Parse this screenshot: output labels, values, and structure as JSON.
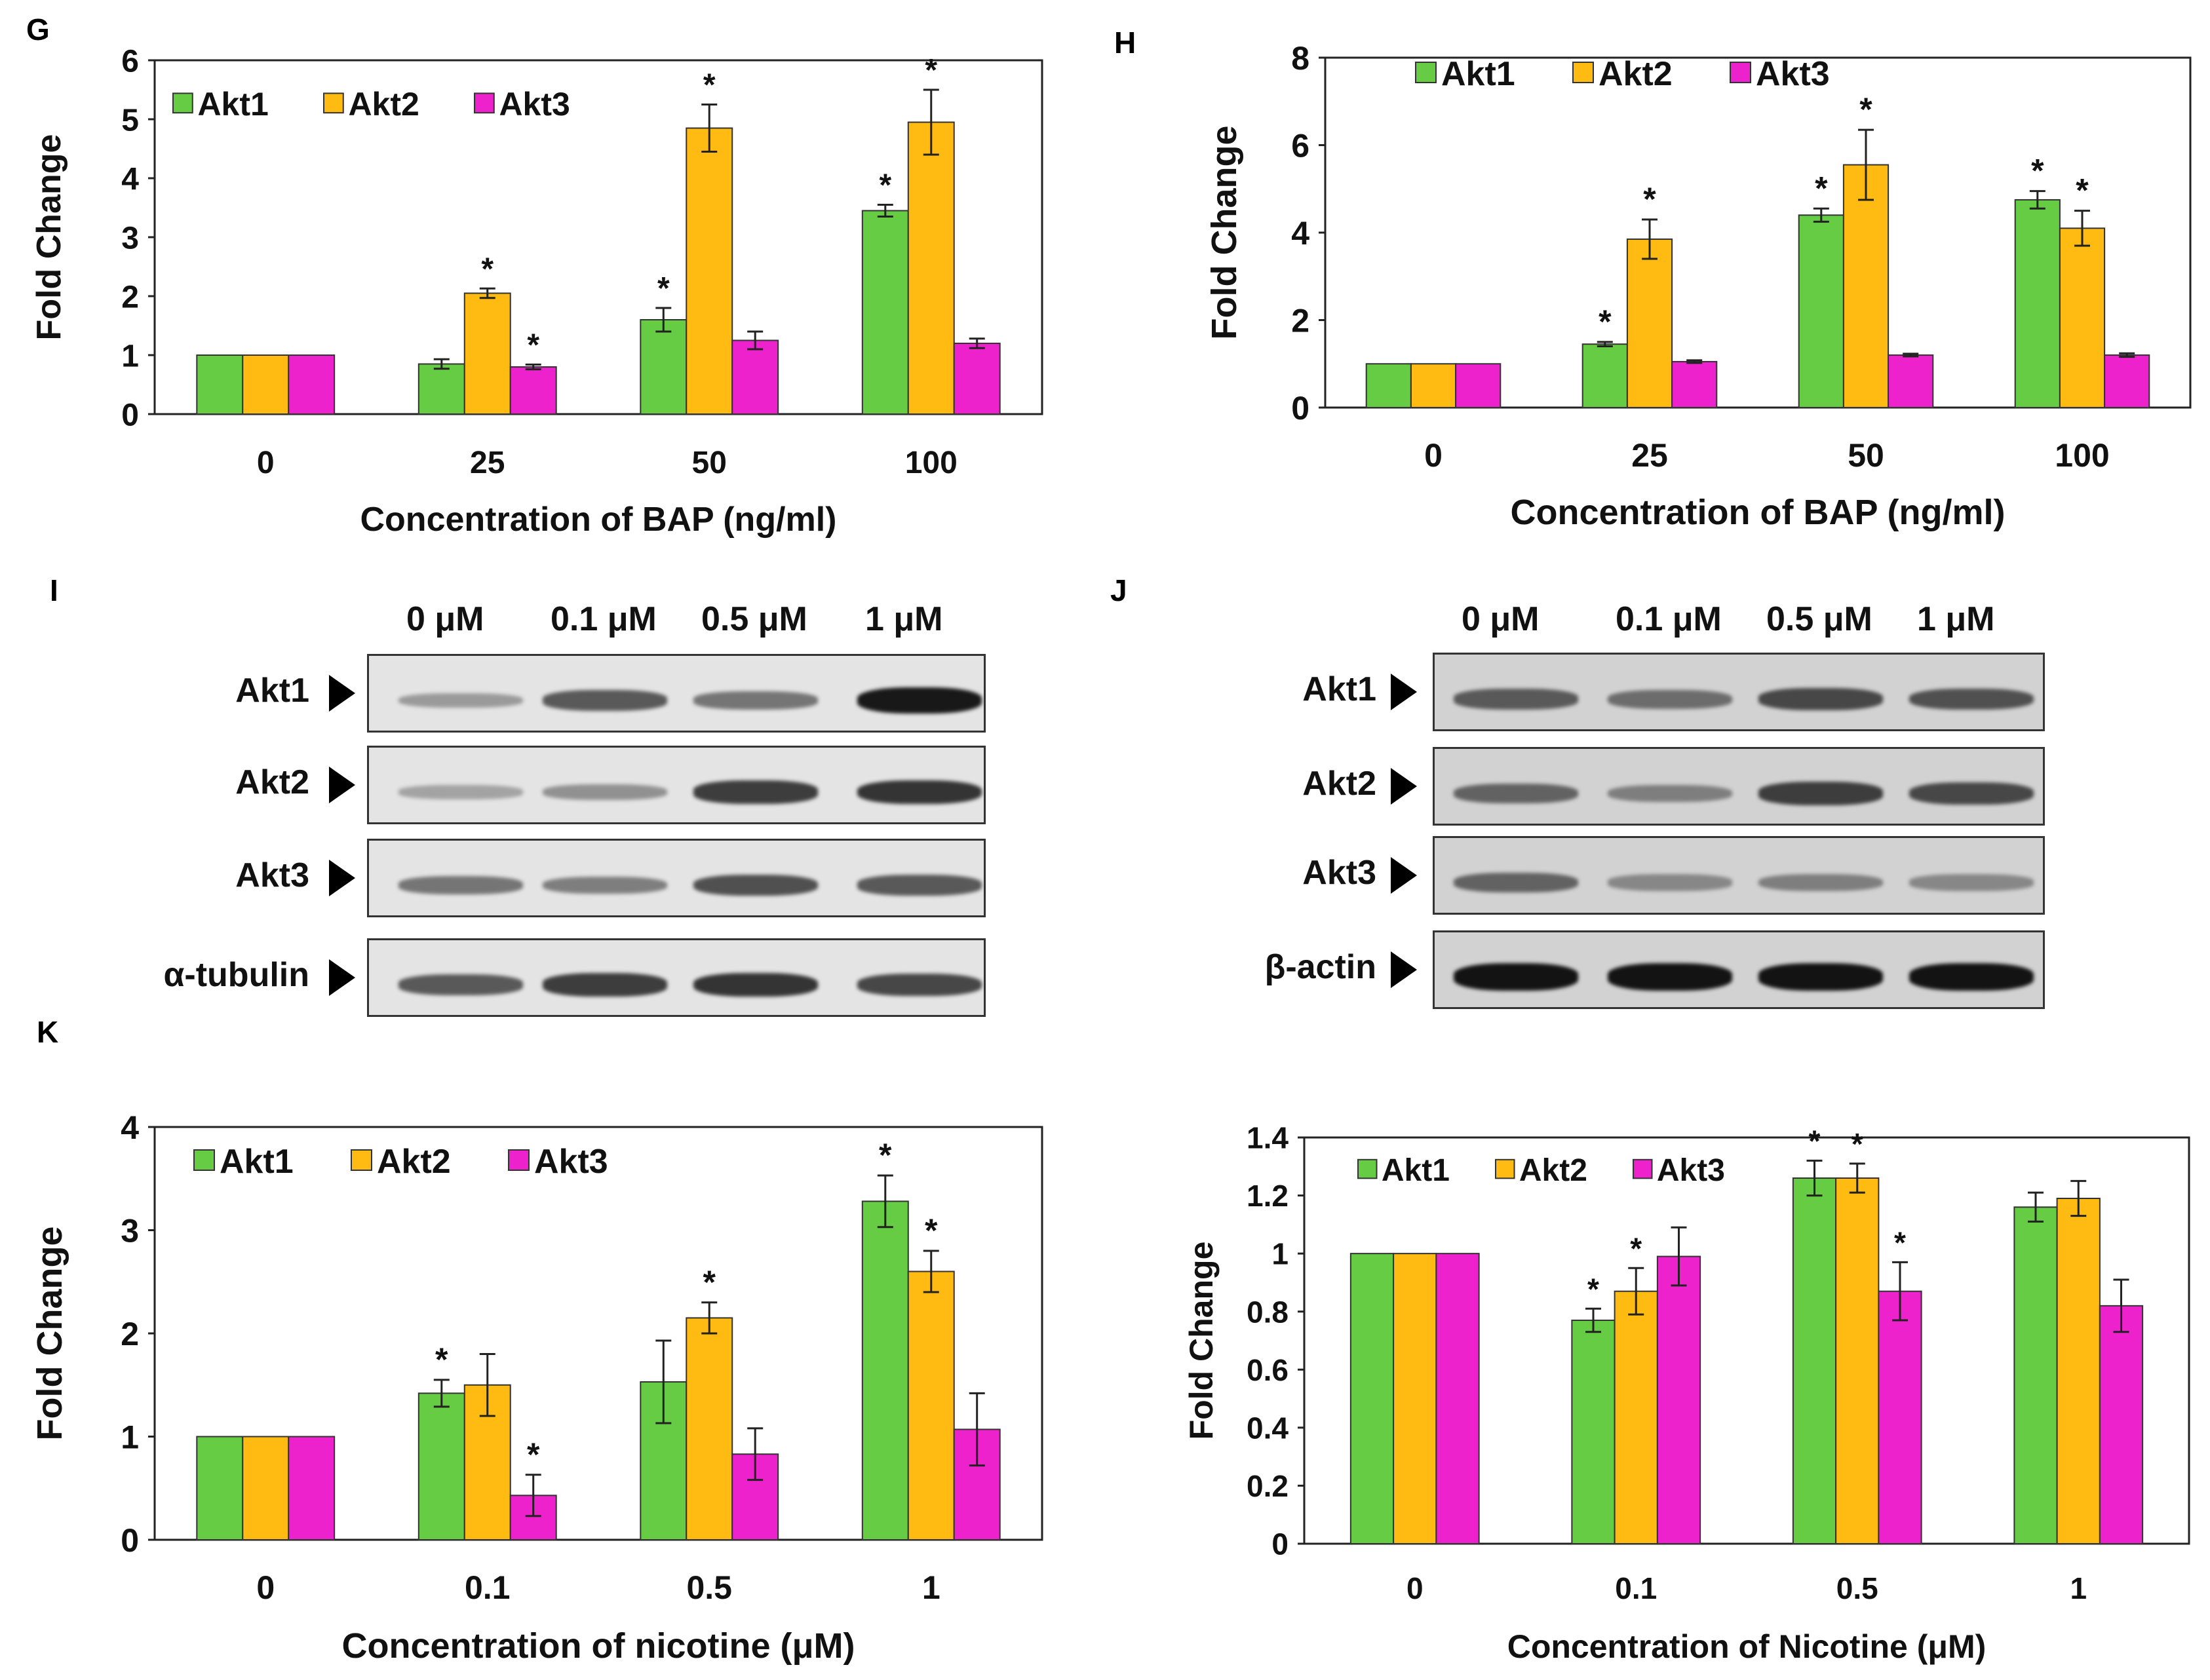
{
  "panels": {
    "G": "G",
    "H": "H",
    "I": "I",
    "J": "J",
    "K": "K"
  },
  "colors": {
    "akt1": "#66cc44",
    "akt2": "#ffbb11",
    "akt3": "#ee22cc"
  },
  "chart_data": [
    {
      "id": "G",
      "type": "bar",
      "title": "",
      "xlabel": "Concentration of BAP (ng/ml)",
      "ylabel": "Fold Change",
      "categories": [
        "0",
        "25",
        "50",
        "100"
      ],
      "ylim": [
        0,
        6
      ],
      "yticks": [
        "0",
        "1",
        "2",
        "3",
        "4",
        "5",
        "6"
      ],
      "series": [
        {
          "name": "Akt1",
          "values": [
            1.0,
            0.85,
            1.6,
            3.45
          ],
          "errors": [
            0,
            0.08,
            0.2,
            0.1
          ],
          "sig": [
            "",
            "",
            "*",
            "*"
          ]
        },
        {
          "name": "Akt2",
          "values": [
            1.0,
            2.05,
            4.85,
            4.95
          ],
          "errors": [
            0,
            0.08,
            0.4,
            0.55
          ],
          "sig": [
            "",
            "*",
            "*",
            "*"
          ]
        },
        {
          "name": "Akt3",
          "values": [
            1.0,
            0.8,
            1.25,
            1.2
          ],
          "errors": [
            0,
            0.04,
            0.15,
            0.08
          ],
          "sig": [
            "",
            "*",
            "",
            ""
          ]
        }
      ]
    },
    {
      "id": "H",
      "type": "bar",
      "title": "",
      "xlabel": "Concentration of BAP (ng/ml)",
      "ylabel": "Fold Change",
      "categories": [
        "0",
        "25",
        "50",
        "100"
      ],
      "ylim": [
        0,
        8
      ],
      "yticks": [
        "0",
        "2",
        "4",
        "6",
        "8"
      ],
      "series": [
        {
          "name": "Akt1",
          "values": [
            1.0,
            1.45,
            4.4,
            4.75
          ],
          "errors": [
            0,
            0.05,
            0.15,
            0.2
          ],
          "sig": [
            "",
            "*",
            "*",
            "*"
          ]
        },
        {
          "name": "Akt2",
          "values": [
            1.0,
            3.85,
            5.55,
            4.1
          ],
          "errors": [
            0,
            0.45,
            0.8,
            0.4
          ],
          "sig": [
            "",
            "*",
            "*",
            "*"
          ]
        },
        {
          "name": "Akt3",
          "values": [
            1.0,
            1.05,
            1.2,
            1.2
          ],
          "errors": [
            0,
            0.03,
            0.03,
            0.04
          ],
          "sig": [
            "",
            "",
            "",
            ""
          ]
        }
      ]
    },
    {
      "id": "K",
      "type": "bar",
      "title": "",
      "xlabel": "Concentration of nicotine (μM)",
      "ylabel": "Fold Change",
      "categories": [
        "0",
        "0.1",
        "0.5",
        "1"
      ],
      "ylim": [
        0,
        4
      ],
      "yticks": [
        "0",
        "1",
        "2",
        "3",
        "4"
      ],
      "series": [
        {
          "name": "Akt1",
          "values": [
            1.0,
            1.42,
            1.53,
            3.28
          ],
          "errors": [
            0,
            0.13,
            0.4,
            0.25
          ],
          "sig": [
            "",
            "*",
            "",
            "*"
          ]
        },
        {
          "name": "Akt2",
          "values": [
            1.0,
            1.5,
            2.15,
            2.6
          ],
          "errors": [
            0,
            0.3,
            0.15,
            0.2
          ],
          "sig": [
            "",
            "",
            "*",
            "*"
          ]
        },
        {
          "name": "Akt3",
          "values": [
            1.0,
            0.43,
            0.83,
            1.07
          ],
          "errors": [
            0,
            0.2,
            0.25,
            0.35
          ],
          "sig": [
            "",
            "*",
            "",
            ""
          ]
        }
      ]
    },
    {
      "id": "L",
      "type": "bar",
      "title": "",
      "xlabel": "Concentration of Nicotine (μM)",
      "ylabel": "Fold Change",
      "categories": [
        "0",
        "0.1",
        "0.5",
        "1"
      ],
      "ylim": [
        0,
        1.4
      ],
      "yticks": [
        "0",
        "0.2",
        "0.4",
        "0.6",
        "0.8",
        "1",
        "1.2",
        "1.4"
      ],
      "series": [
        {
          "name": "Akt1",
          "values": [
            1.0,
            0.77,
            1.26,
            1.16
          ],
          "errors": [
            0,
            0.04,
            0.06,
            0.05
          ],
          "sig": [
            "",
            "*",
            "*",
            ""
          ]
        },
        {
          "name": "Akt2",
          "values": [
            1.0,
            0.87,
            1.26,
            1.19
          ],
          "errors": [
            0,
            0.08,
            0.05,
            0.06
          ],
          "sig": [
            "",
            "*",
            "*",
            ""
          ]
        },
        {
          "name": "Akt3",
          "values": [
            1.0,
            0.99,
            0.87,
            0.82
          ],
          "errors": [
            0,
            0.1,
            0.1,
            0.09
          ],
          "sig": [
            "",
            "",
            "*",
            ""
          ]
        }
      ]
    }
  ],
  "blots": {
    "I": {
      "lanes": [
        "0 μM",
        "0.1 μM",
        "0.5 μM",
        "1 μM"
      ],
      "rows": [
        {
          "label": "Akt1",
          "intensity": [
            0.25,
            0.6,
            0.45,
            0.95
          ]
        },
        {
          "label": "Akt2",
          "intensity": [
            0.2,
            0.3,
            0.75,
            0.8
          ]
        },
        {
          "label": "Akt3",
          "intensity": [
            0.45,
            0.4,
            0.65,
            0.6
          ]
        },
        {
          "label": "α-tubulin",
          "intensity": [
            0.6,
            0.75,
            0.8,
            0.7
          ]
        }
      ]
    },
    "J": {
      "lanes": [
        "0 μM",
        "0.1 μM",
        "0.5 μM",
        "1 μM"
      ],
      "rows": [
        {
          "label": "Akt1",
          "intensity": [
            0.6,
            0.5,
            0.7,
            0.65
          ]
        },
        {
          "label": "Akt2",
          "intensity": [
            0.55,
            0.4,
            0.75,
            0.7
          ]
        },
        {
          "label": "Akt3",
          "intensity": [
            0.55,
            0.35,
            0.4,
            0.35
          ]
        },
        {
          "label": "β-actin",
          "intensity": [
            0.98,
            0.98,
            0.98,
            0.98
          ]
        }
      ]
    }
  }
}
